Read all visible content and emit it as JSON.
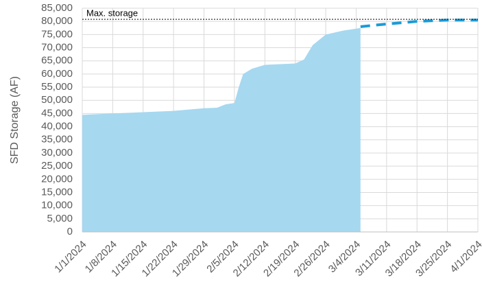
{
  "chart_data": {
    "type": "area",
    "ylabel": "SFD Storage (AF)",
    "x": [
      "1/1/2024",
      "1/8/2024",
      "1/15/2024",
      "1/22/2024",
      "1/29/2024",
      "2/1/2024",
      "2/3/2024",
      "2/5/2024",
      "2/6/2024",
      "2/7/2024",
      "2/9/2024",
      "2/12/2024",
      "2/19/2024",
      "2/21/2024",
      "2/23/2024",
      "2/26/2024",
      "3/1/2024",
      "3/5/2024",
      "3/11/2024",
      "3/18/2024",
      "3/25/2024",
      "4/1/2024"
    ],
    "series": [
      {
        "style": "area",
        "color": "#a6d8f0",
        "values": [
          44500,
          45000,
          45500,
          46000,
          47000,
          47200,
          48500,
          49000,
          55000,
          60000,
          62000,
          63500,
          64000,
          65500,
          71000,
          75000,
          76500,
          77500,
          null,
          null,
          null,
          null
        ]
      },
      {
        "style": "dashed",
        "color": "#1a9bd7",
        "values": [
          null,
          null,
          null,
          null,
          null,
          null,
          null,
          null,
          null,
          null,
          null,
          null,
          null,
          null,
          null,
          null,
          null,
          78000,
          79000,
          80000,
          80500,
          80500
        ]
      }
    ],
    "xlim": [
      "1/1/2024",
      "4/1/2024"
    ],
    "xticks": [
      "1/1/2024",
      "1/8/2024",
      "1/15/2024",
      "1/22/2024",
      "1/29/2024",
      "2/5/2024",
      "2/12/2024",
      "2/19/2024",
      "2/26/2024",
      "3/4/2024",
      "3/11/2024",
      "3/18/2024",
      "3/25/2024",
      "4/1/2024"
    ],
    "ylim": [
      0,
      85000
    ],
    "yticks": [
      0,
      {
        "value": 5000,
        "label": "5,000"
      },
      {
        "value": 10000,
        "label": "10,000"
      },
      {
        "value": 15000,
        "label": "15,000"
      },
      {
        "value": 20000,
        "label": "20,000"
      },
      {
        "value": 25000,
        "label": "25,000"
      },
      {
        "value": 30000,
        "label": "30,000"
      },
      {
        "value": 35000,
        "label": "35,000"
      },
      {
        "value": 40000,
        "label": "40,000"
      },
      {
        "value": 45000,
        "label": "45,000"
      },
      {
        "value": 50000,
        "label": "50,000"
      },
      {
        "value": 55000,
        "label": "55,000"
      },
      {
        "value": 60000,
        "label": "60,000"
      },
      {
        "value": 65000,
        "label": "65,000"
      },
      {
        "value": 70000,
        "label": "70,000"
      },
      {
        "value": 75000,
        "label": "75,000"
      },
      {
        "value": 80000,
        "label": "80,000"
      },
      {
        "value": 85000,
        "label": "85,000"
      }
    ],
    "grid": true,
    "hline": {
      "value": 80800,
      "label": "Max. storage"
    }
  }
}
